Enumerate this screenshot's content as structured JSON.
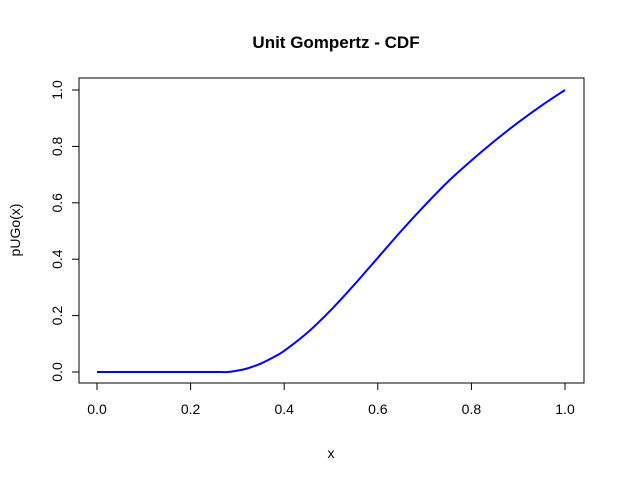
{
  "chart_data": {
    "type": "line",
    "title": "Unit Gompertz - CDF",
    "xlabel": "x",
    "ylabel": "pUGo(x)",
    "xlim": [
      0.0,
      1.0
    ],
    "ylim": [
      0.0,
      1.0
    ],
    "xticks": [
      0.0,
      0.2,
      0.4,
      0.6,
      0.8,
      1.0
    ],
    "yticks": [
      0.0,
      0.2,
      0.4,
      0.6,
      0.8,
      1.0
    ],
    "xtick_labels": [
      "0.0",
      "0.2",
      "0.4",
      "0.6",
      "0.8",
      "1.0"
    ],
    "ytick_labels": [
      "0.0",
      "0.2",
      "0.4",
      "0.6",
      "0.8",
      "1.0"
    ],
    "grid": false,
    "line_color": "#0000ff",
    "series": [
      {
        "x": [
          0.0,
          0.05,
          0.1,
          0.15,
          0.2,
          0.25,
          0.28,
          0.3,
          0.32,
          0.35,
          0.38,
          0.4,
          0.45,
          0.5,
          0.55,
          0.6,
          0.65,
          0.7,
          0.75,
          0.8,
          0.85,
          0.9,
          0.95,
          1.0
        ],
        "y": [
          0.0,
          0.0,
          0.0,
          0.0,
          0.0,
          0.0,
          0.0,
          0.005,
          0.012,
          0.03,
          0.055,
          0.075,
          0.14,
          0.22,
          0.31,
          0.405,
          0.5,
          0.59,
          0.675,
          0.75,
          0.82,
          0.885,
          0.945,
          1.0
        ]
      }
    ]
  }
}
